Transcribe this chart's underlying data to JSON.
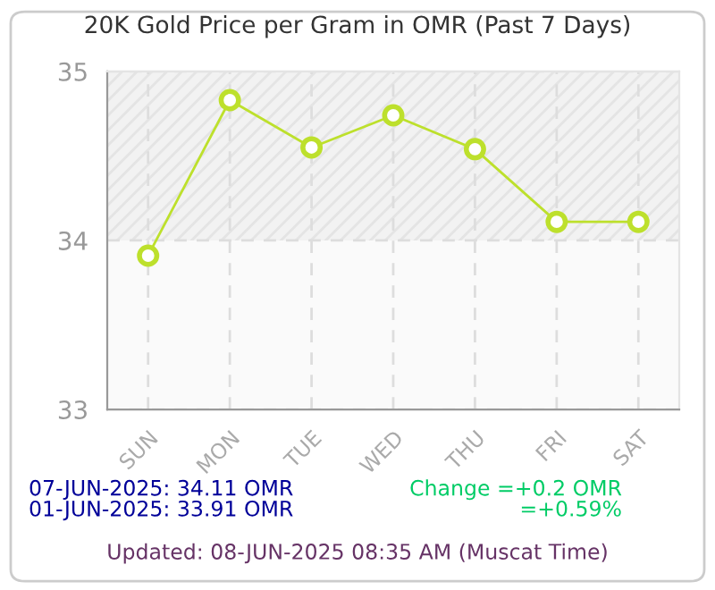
{
  "chart_data": {
    "type": "line",
    "title": "20K Gold Price per Gram in OMR (Past 7 Days)",
    "categories": [
      "SUN",
      "MON",
      "TUE",
      "WED",
      "THU",
      "FRI",
      "SAT"
    ],
    "series": [
      {
        "color": "#bde02c",
        "values": [
          33.91,
          34.83,
          34.55,
          34.74,
          34.54,
          34.11,
          34.11
        ]
      }
    ],
    "ylim": [
      33,
      35
    ],
    "yticks": [
      33,
      34,
      35
    ],
    "grid": true,
    "marker": "circle",
    "line_style": "solid",
    "bands": [
      {
        "axis": "y",
        "from": 34,
        "to": 35,
        "color": "#f2f2f2"
      }
    ],
    "annotations": [
      "07-JUN-2025: 34.11 OMR",
      "01-JUN-2025: 33.91 OMR",
      "Change =+0.2 OMR",
      "=+0.59%",
      "Updated: 08-JUN-2025 08:35 AM (Muscat Time)"
    ]
  }
}
